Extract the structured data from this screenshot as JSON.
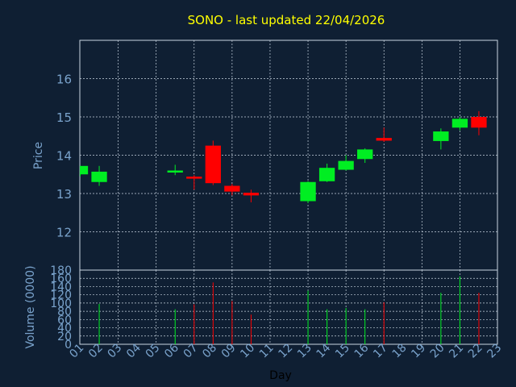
{
  "chart_data": {
    "type": "candlestick",
    "title": "SONO - last updated 22/04/2026",
    "xlabel": "Day",
    "price_panel": {
      "ylabel": "Price",
      "ylim": [
        11,
        17
      ],
      "yticks": [
        "12",
        "13",
        "14",
        "15",
        "16"
      ]
    },
    "volume_panel": {
      "ylabel": "Volume (0000)",
      "ylim": [
        0,
        180
      ],
      "yticks": [
        "0",
        "20",
        "40",
        "60",
        "80",
        "100",
        "120",
        "140",
        "160",
        "180"
      ]
    },
    "x_ticks": [
      "01",
      "02",
      "03",
      "04",
      "05",
      "06",
      "07",
      "08",
      "09",
      "10",
      "11",
      "12",
      "13",
      "14",
      "15",
      "16",
      "17",
      "18",
      "19",
      "20",
      "21",
      "22",
      "23"
    ],
    "xlim": [
      1,
      23
    ],
    "candles": [
      {
        "day": 1,
        "open": 13.5,
        "high": 13.72,
        "low": 13.45,
        "close": 13.72,
        "volume": 0
      },
      {
        "day": 2,
        "open": 13.3,
        "high": 13.72,
        "low": 13.2,
        "close": 13.57,
        "volume": 98
      },
      {
        "day": 6,
        "open": 13.58,
        "high": 13.75,
        "low": 13.48,
        "close": 13.6,
        "volume": 85
      },
      {
        "day": 7,
        "open": 13.44,
        "high": 13.48,
        "low": 13.1,
        "close": 13.4,
        "volume": 97
      },
      {
        "day": 8,
        "open": 14.25,
        "high": 14.38,
        "low": 13.22,
        "close": 13.27,
        "volume": 150
      },
      {
        "day": 9,
        "open": 13.2,
        "high": 13.25,
        "low": 12.95,
        "close": 13.05,
        "volume": 105
      },
      {
        "day": 10,
        "open": 13.02,
        "high": 13.1,
        "low": 12.77,
        "close": 12.95,
        "volume": 72
      },
      {
        "day": 13,
        "open": 12.8,
        "high": 13.32,
        "low": 12.75,
        "close": 13.3,
        "volume": 130
      },
      {
        "day": 14,
        "open": 13.32,
        "high": 13.78,
        "low": 13.3,
        "close": 13.67,
        "volume": 85
      },
      {
        "day": 15,
        "open": 13.62,
        "high": 14.0,
        "low": 13.6,
        "close": 13.85,
        "volume": 88
      },
      {
        "day": 16,
        "open": 13.9,
        "high": 14.18,
        "low": 13.8,
        "close": 14.15,
        "volume": 85
      },
      {
        "day": 17,
        "open": 14.45,
        "high": 14.72,
        "low": 14.35,
        "close": 14.38,
        "volume": 102
      },
      {
        "day": 20,
        "open": 14.37,
        "high": 14.7,
        "low": 14.15,
        "close": 14.62,
        "volume": 125
      },
      {
        "day": 21,
        "open": 14.72,
        "high": 15.0,
        "low": 14.65,
        "close": 14.95,
        "volume": 165
      },
      {
        "day": 22,
        "open": 15.0,
        "high": 15.15,
        "low": 14.52,
        "close": 14.72,
        "volume": 125
      }
    ],
    "grid": true,
    "colors": {
      "background": "#0f1f33",
      "panel": "#0f1f33",
      "up": "#00ee22",
      "down": "#ff0000",
      "title": "#ffff00",
      "axis_text": "#7aa3cc",
      "grid": "#c8d4e0",
      "frame": "#c8d4e0",
      "xlabel": "#000000"
    }
  }
}
